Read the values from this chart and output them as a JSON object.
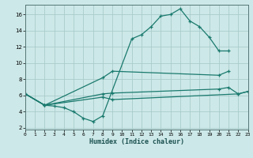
{
  "xlabel": "Humidex (Indice chaleur)",
  "bg_color": "#cde8e8",
  "line_color": "#1a7a6e",
  "grid_color": "#aacccc",
  "xlim": [
    0,
    23
  ],
  "ylim": [
    1.8,
    17.2
  ],
  "xtick_labels": [
    "0",
    "1",
    "2",
    "3",
    "4",
    "5",
    "6",
    "7",
    "8",
    "9",
    "10",
    "11",
    "12",
    "13",
    "14",
    "15",
    "16",
    "17",
    "18",
    "19",
    "20",
    "21",
    "22",
    "23"
  ],
  "ytick_vals": [
    2,
    4,
    6,
    8,
    10,
    12,
    14,
    16
  ],
  "lines": [
    {
      "x": [
        0,
        2,
        3,
        4,
        5,
        6,
        7,
        8,
        11,
        12,
        13,
        14,
        15,
        16,
        17,
        18,
        19,
        20,
        21
      ],
      "y": [
        6.2,
        4.8,
        4.7,
        4.5,
        4.0,
        3.2,
        2.8,
        3.5,
        13.0,
        13.5,
        14.5,
        15.8,
        16.0,
        16.7,
        15.2,
        14.5,
        13.2,
        11.5,
        11.5
      ]
    },
    {
      "x": [
        0,
        2,
        8,
        9,
        20,
        21
      ],
      "y": [
        6.2,
        4.8,
        8.2,
        9.0,
        8.5,
        9.0
      ]
    },
    {
      "x": [
        0,
        2,
        8,
        9,
        20,
        21,
        22,
        23
      ],
      "y": [
        6.2,
        4.8,
        6.2,
        6.3,
        6.8,
        7.0,
        6.2,
        6.5
      ]
    },
    {
      "x": [
        0,
        2,
        8,
        9,
        22,
        23
      ],
      "y": [
        6.2,
        4.8,
        5.8,
        5.5,
        6.2,
        6.5
      ]
    }
  ]
}
